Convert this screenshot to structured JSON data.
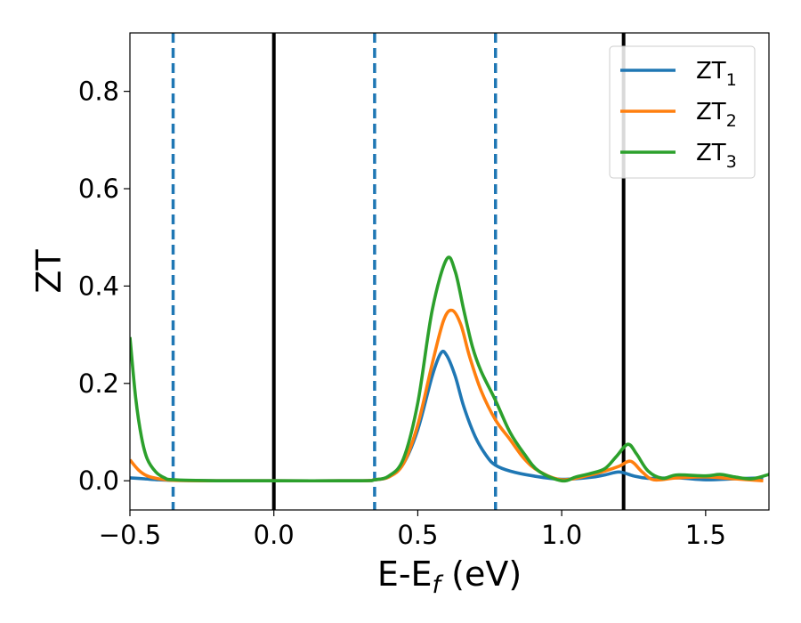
{
  "chart_data": {
    "type": "line",
    "title": "",
    "xlabel": {
      "main": "E-E",
      "sub": "f",
      "rest": " (eV)"
    },
    "ylabel": "ZT",
    "xlim": [
      -0.5,
      1.72
    ],
    "ylim": [
      -0.06,
      0.92
    ],
    "x_ticks": [
      -0.5,
      0.0,
      0.5,
      1.0,
      1.5
    ],
    "x_tick_labels": [
      "−0.5",
      "0.0",
      "0.5",
      "1.0",
      "1.5"
    ],
    "y_ticks": [
      0.0,
      0.2,
      0.4,
      0.6,
      0.8
    ],
    "y_tick_labels": [
      "0.0",
      "0.2",
      "0.4",
      "0.6",
      "0.8"
    ],
    "grid": false,
    "legend_position": "top-right",
    "vertical_lines": [
      {
        "x": -0.35,
        "style": "dashed",
        "color": "#1f77b4"
      },
      {
        "x": 0.0,
        "style": "solid",
        "color": "#000000"
      },
      {
        "x": 0.35,
        "style": "dashed",
        "color": "#1f77b4"
      },
      {
        "x": 0.77,
        "style": "dashed",
        "color": "#1f77b4"
      },
      {
        "x": 1.215,
        "style": "solid",
        "color": "#000000"
      }
    ],
    "series": [
      {
        "name": "ZT",
        "sub": "1",
        "color": "#1f77b4",
        "points": [
          [
            -0.5,
            0.006
          ],
          [
            -0.45,
            0.004
          ],
          [
            -0.4,
            0.002
          ],
          [
            -0.35,
            0.001
          ],
          [
            -0.2,
            0.0
          ],
          [
            0.0,
            0.0
          ],
          [
            0.3,
            0.0
          ],
          [
            0.35,
            0.002
          ],
          [
            0.4,
            0.008
          ],
          [
            0.45,
            0.035
          ],
          [
            0.5,
            0.105
          ],
          [
            0.55,
            0.215
          ],
          [
            0.58,
            0.262
          ],
          [
            0.6,
            0.258
          ],
          [
            0.63,
            0.215
          ],
          [
            0.66,
            0.152
          ],
          [
            0.7,
            0.09
          ],
          [
            0.74,
            0.05
          ],
          [
            0.77,
            0.032
          ],
          [
            0.82,
            0.02
          ],
          [
            0.9,
            0.01
          ],
          [
            1.0,
            0.003
          ],
          [
            1.1,
            0.007
          ],
          [
            1.15,
            0.012
          ],
          [
            1.2,
            0.018
          ],
          [
            1.25,
            0.01
          ],
          [
            1.3,
            0.005
          ],
          [
            1.4,
            0.006
          ],
          [
            1.5,
            0.002
          ],
          [
            1.6,
            0.004
          ],
          [
            1.7,
            0.006
          ]
        ]
      },
      {
        "name": "ZT",
        "sub": "2",
        "color": "#ff7f0e",
        "points": [
          [
            -0.5,
            0.043
          ],
          [
            -0.47,
            0.022
          ],
          [
            -0.44,
            0.01
          ],
          [
            -0.4,
            0.004
          ],
          [
            -0.35,
            0.001
          ],
          [
            -0.2,
            0.0
          ],
          [
            0.0,
            0.0
          ],
          [
            0.3,
            0.0
          ],
          [
            0.35,
            0.002
          ],
          [
            0.4,
            0.008
          ],
          [
            0.45,
            0.035
          ],
          [
            0.5,
            0.115
          ],
          [
            0.55,
            0.24
          ],
          [
            0.59,
            0.33
          ],
          [
            0.62,
            0.35
          ],
          [
            0.65,
            0.32
          ],
          [
            0.68,
            0.255
          ],
          [
            0.72,
            0.185
          ],
          [
            0.77,
            0.125
          ],
          [
            0.82,
            0.085
          ],
          [
            0.87,
            0.045
          ],
          [
            0.92,
            0.02
          ],
          [
            1.0,
            0.002
          ],
          [
            1.1,
            0.012
          ],
          [
            1.15,
            0.02
          ],
          [
            1.2,
            0.03
          ],
          [
            1.24,
            0.04
          ],
          [
            1.28,
            0.018
          ],
          [
            1.32,
            0.002
          ],
          [
            1.4,
            0.006
          ],
          [
            1.5,
            0.008
          ],
          [
            1.6,
            0.004
          ],
          [
            1.7,
            0.0
          ]
        ]
      },
      {
        "name": "ZT",
        "sub": "3",
        "color": "#2ca02c",
        "points": [
          [
            -0.5,
            0.295
          ],
          [
            -0.48,
            0.17
          ],
          [
            -0.46,
            0.09
          ],
          [
            -0.44,
            0.045
          ],
          [
            -0.41,
            0.018
          ],
          [
            -0.38,
            0.006
          ],
          [
            -0.35,
            0.002
          ],
          [
            -0.2,
            0.0
          ],
          [
            0.0,
            0.0
          ],
          [
            0.3,
            0.0
          ],
          [
            0.35,
            0.002
          ],
          [
            0.4,
            0.01
          ],
          [
            0.45,
            0.045
          ],
          [
            0.5,
            0.16
          ],
          [
            0.55,
            0.35
          ],
          [
            0.6,
            0.455
          ],
          [
            0.63,
            0.43
          ],
          [
            0.66,
            0.35
          ],
          [
            0.69,
            0.275
          ],
          [
            0.72,
            0.225
          ],
          [
            0.77,
            0.165
          ],
          [
            0.82,
            0.1
          ],
          [
            0.87,
            0.055
          ],
          [
            0.92,
            0.02
          ],
          [
            1.0,
            0.0
          ],
          [
            1.05,
            0.008
          ],
          [
            1.1,
            0.015
          ],
          [
            1.15,
            0.025
          ],
          [
            1.19,
            0.05
          ],
          [
            1.23,
            0.075
          ],
          [
            1.26,
            0.055
          ],
          [
            1.3,
            0.02
          ],
          [
            1.35,
            0.005
          ],
          [
            1.4,
            0.012
          ],
          [
            1.5,
            0.01
          ],
          [
            1.55,
            0.013
          ],
          [
            1.6,
            0.008
          ],
          [
            1.66,
            0.004
          ],
          [
            1.72,
            0.013
          ]
        ]
      }
    ]
  }
}
